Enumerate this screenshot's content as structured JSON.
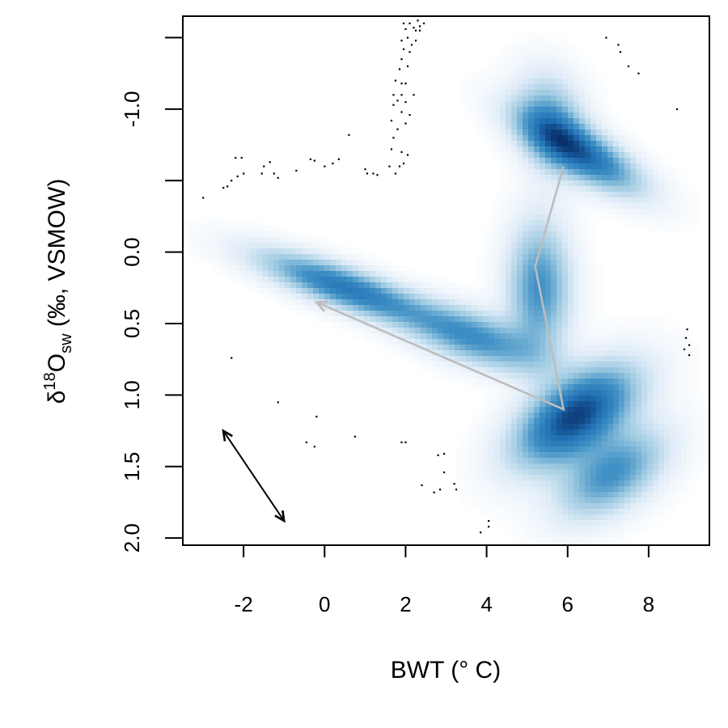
{
  "chart_data": {
    "type": "heatmap",
    "title": "",
    "xlabel": "BWT (° C)",
    "ylabel": {
      "delta": "δ",
      "superscript": "18",
      "element": "O",
      "subscript": "sw",
      "rest": " (‰, VSMOW)"
    },
    "xlim": [
      -3.5,
      9.5
    ],
    "ylim": [
      2.05,
      -1.65
    ],
    "y_axis_reversed": true,
    "xticks": [
      -2,
      0,
      2,
      4,
      6,
      8
    ],
    "xtick_labels": [
      "-2",
      "0",
      "2",
      "4",
      "6",
      "8"
    ],
    "yticks": [
      -1.5,
      -1.0,
      -0.5,
      0.0,
      0.5,
      1.0,
      1.5,
      2.0
    ],
    "ytick_labels": [
      "",
      "-1.0",
      "",
      "0.0",
      "0.5",
      "1.0",
      "1.5",
      "2.0"
    ],
    "grid": false,
    "colormap": [
      "#ffffff",
      "#deebf7",
      "#9ecae1",
      "#4292c6",
      "#2171b5",
      "#08306b"
    ],
    "density_modes": [
      {
        "x": 6.2,
        "y": 1.15,
        "sx": 0.95,
        "sy": 0.22,
        "rho": -0.55,
        "w": 1.0
      },
      {
        "x": 7.1,
        "y": 1.55,
        "sx": 0.85,
        "sy": 0.2,
        "rho": -0.5,
        "w": 0.55
      },
      {
        "x": 3.7,
        "y": 0.6,
        "sx": 1.1,
        "sy": 0.15,
        "rho": 0.6,
        "w": 0.55
      },
      {
        "x": 0.5,
        "y": 0.25,
        "sx": 1.35,
        "sy": 0.16,
        "rho": 0.8,
        "w": 0.72
      },
      {
        "x": 5.3,
        "y": 0.25,
        "sx": 0.5,
        "sy": 0.3,
        "rho": 0.0,
        "w": 0.55
      },
      {
        "x": 6.3,
        "y": -0.7,
        "sx": 0.95,
        "sy": 0.18,
        "rho": 0.75,
        "w": 0.8
      },
      {
        "x": 5.6,
        "y": -0.9,
        "sx": 0.55,
        "sy": 0.22,
        "rho": 0.2,
        "w": 0.45
      }
    ],
    "gray_path": {
      "color": "#bdbdbd",
      "points": [
        [
          5.9,
          -0.6
        ],
        [
          5.2,
          0.1
        ],
        [
          5.9,
          1.1
        ],
        [
          -0.2,
          0.35
        ]
      ]
    },
    "black_arrow": {
      "color": "#000000",
      "from": [
        -2.5,
        1.25
      ],
      "to": [
        -1.0,
        1.88
      ]
    },
    "points": [
      [
        -3.0,
        -0.38
      ],
      [
        -2.5,
        -0.45
      ],
      [
        -2.4,
        -0.46
      ],
      [
        -2.3,
        -0.5
      ],
      [
        -2.15,
        -0.53
      ],
      [
        -2.0,
        -0.55
      ],
      [
        -2.2,
        -0.66
      ],
      [
        -2.05,
        -0.66
      ],
      [
        -1.55,
        -0.55
      ],
      [
        -1.5,
        -0.6
      ],
      [
        -1.25,
        -0.55
      ],
      [
        -1.15,
        -0.52
      ],
      [
        -1.35,
        -0.63
      ],
      [
        -0.7,
        -0.57
      ],
      [
        -0.35,
        -0.65
      ],
      [
        -0.25,
        -0.64
      ],
      [
        0.0,
        -0.6
      ],
      [
        0.2,
        -0.62
      ],
      [
        0.35,
        -0.65
      ],
      [
        1.0,
        -0.58
      ],
      [
        1.05,
        -0.55
      ],
      [
        1.2,
        -0.55
      ],
      [
        1.3,
        -0.54
      ],
      [
        1.6,
        -0.6
      ],
      [
        1.75,
        -0.55
      ],
      [
        1.85,
        -0.6
      ],
      [
        1.95,
        -0.62
      ],
      [
        1.9,
        -0.7
      ],
      [
        2.05,
        -0.68
      ],
      [
        1.65,
        -0.72
      ],
      [
        1.7,
        -0.8
      ],
      [
        1.8,
        -0.86
      ],
      [
        2.0,
        -0.9
      ],
      [
        1.9,
        -0.98
      ],
      [
        2.1,
        -0.96
      ],
      [
        1.65,
        -0.92
      ],
      [
        1.7,
        -1.03
      ],
      [
        1.8,
        -1.06
      ],
      [
        1.9,
        -1.1
      ],
      [
        2.0,
        -1.05
      ],
      [
        1.7,
        -1.1
      ],
      [
        1.75,
        -1.2
      ],
      [
        1.9,
        -1.18
      ],
      [
        2.2,
        -1.1
      ],
      [
        2.0,
        -1.18
      ],
      [
        1.85,
        -1.28
      ],
      [
        1.9,
        -1.35
      ],
      [
        2.05,
        -1.3
      ],
      [
        1.95,
        -1.42
      ],
      [
        2.1,
        -1.4
      ],
      [
        2.15,
        -1.45
      ],
      [
        2.25,
        -1.48
      ],
      [
        1.9,
        -1.48
      ],
      [
        2.05,
        -1.5
      ],
      [
        2.25,
        -1.55
      ],
      [
        2.35,
        -1.58
      ],
      [
        2.0,
        -1.56
      ],
      [
        2.1,
        -1.6
      ],
      [
        1.95,
        -1.6
      ],
      [
        2.3,
        -1.62
      ],
      [
        2.45,
        -1.6
      ],
      [
        2.35,
        -1.55
      ],
      [
        2.2,
        -1.57
      ],
      [
        0.6,
        -0.82
      ],
      [
        6.95,
        -1.5
      ],
      [
        7.25,
        -1.45
      ],
      [
        7.3,
        -1.4
      ],
      [
        7.5,
        -1.3
      ],
      [
        7.75,
        -1.25
      ],
      [
        8.7,
        -1.0
      ],
      [
        8.95,
        0.54
      ],
      [
        8.92,
        0.6
      ],
      [
        9.0,
        0.65
      ],
      [
        8.88,
        0.68
      ],
      [
        9.0,
        0.72
      ],
      [
        -2.3,
        0.74
      ],
      [
        -1.15,
        1.05
      ],
      [
        -0.2,
        1.15
      ],
      [
        -0.45,
        1.33
      ],
      [
        -0.25,
        1.36
      ],
      [
        0.75,
        1.29
      ],
      [
        1.9,
        1.33
      ],
      [
        2.0,
        1.33
      ],
      [
        2.8,
        1.42
      ],
      [
        2.95,
        1.41
      ],
      [
        2.95,
        1.54
      ],
      [
        2.4,
        1.63
      ],
      [
        2.7,
        1.68
      ],
      [
        3.2,
        1.62
      ],
      [
        3.25,
        1.66
      ],
      [
        2.85,
        1.66
      ],
      [
        4.05,
        1.88
      ],
      [
        4.05,
        1.92
      ],
      [
        3.85,
        1.96
      ]
    ]
  }
}
